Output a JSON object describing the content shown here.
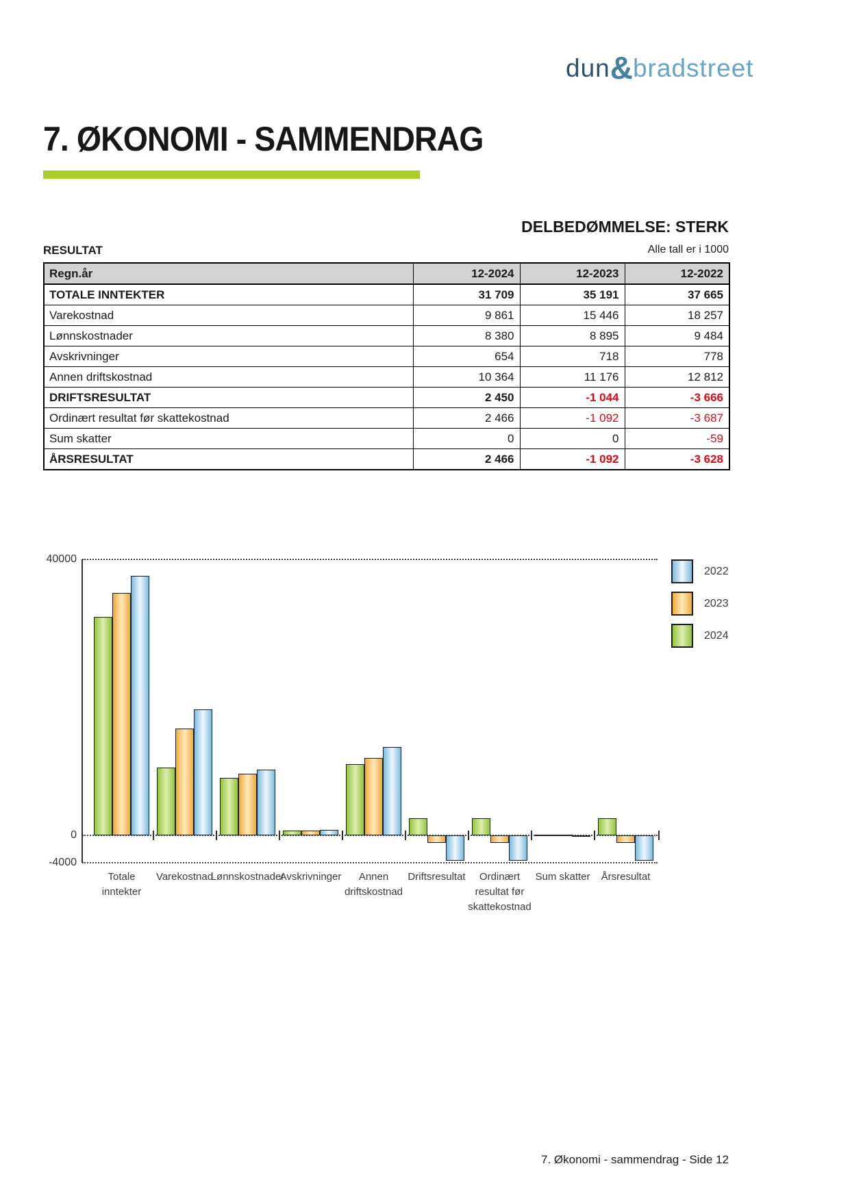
{
  "logo": {
    "word1": "dun",
    "ampersand": "&",
    "word2": "bradstreet"
  },
  "header": {
    "title": "7. ØKONOMI - SAMMENDRAG"
  },
  "summary": {
    "rating": "DELBEDØMMELSE: STERK",
    "section_label": "RESULTAT",
    "units": "Alle tall er i 1000"
  },
  "table": {
    "columns": [
      "Regn.år",
      "12-2024",
      "12-2023",
      "12-2022"
    ],
    "rows": [
      {
        "label": "TOTALE INNTEKTER",
        "values": [
          "31 709",
          "35 191",
          "37 665"
        ]
      },
      {
        "label": "Varekostnad",
        "values": [
          "9 861",
          "15 446",
          "18 257"
        ]
      },
      {
        "label": "Lønnskostnader",
        "values": [
          "8 380",
          "8 895",
          "9 484"
        ]
      },
      {
        "label": "Avskrivninger",
        "values": [
          "654",
          "718",
          "778"
        ]
      },
      {
        "label": "Annen driftskostnad",
        "values": [
          "10 364",
          "11 176",
          "12 812"
        ]
      },
      {
        "label": "DRIFTSRESULTAT",
        "values": [
          "2 450",
          "-1 044",
          "-3 666"
        ]
      },
      {
        "label": "Ordinært resultat før skattekostnad",
        "values": [
          "2 466",
          "-1 092",
          "-3 687"
        ]
      },
      {
        "label": "Sum skatter",
        "values": [
          "0",
          "0",
          "-59"
        ]
      },
      {
        "label": "ÅRSRESULTAT",
        "values": [
          "2 466",
          "-1 092",
          "-3 628"
        ]
      }
    ]
  },
  "chart_data": {
    "type": "bar",
    "categories": [
      "Totale inntekter",
      "Varekostnad",
      "Lønnskostnader",
      "Avskrivninger",
      "Annen driftskostnad",
      "Driftsresultat",
      "Ordinært resultat før skattekostnad",
      "Sum skatter",
      "Årsresultat"
    ],
    "category_label_lines": [
      [
        "Totale",
        "inntekter"
      ],
      [
        "Varekostnad"
      ],
      [
        "Lønnskostnader"
      ],
      [
        "Avskrivninger"
      ],
      [
        "Annen",
        "driftskostnad"
      ],
      [
        "Driftsresultat"
      ],
      [
        "Ordinært",
        "resultat før",
        "skattekostnad"
      ],
      [
        "Sum skatter"
      ],
      [
        "Årsresultat"
      ]
    ],
    "series": [
      {
        "name": "2024",
        "edge_color": "#94c53d",
        "center_color": "#ddeeb0",
        "values": [
          31709,
          9861,
          8380,
          654,
          10364,
          2450,
          2466,
          0,
          2466
        ]
      },
      {
        "name": "2023",
        "edge_color": "#f2a93b",
        "center_color": "#fdebbd",
        "values": [
          35191,
          15446,
          8895,
          718,
          11176,
          -1044,
          -1092,
          0,
          -1092
        ]
      },
      {
        "name": "2022",
        "edge_color": "#7fbce2",
        "center_color": "#eef8fe",
        "values": [
          37665,
          18257,
          9484,
          778,
          12812,
          -3666,
          -3687,
          -59,
          -3628
        ]
      }
    ],
    "legend_order": [
      "2022",
      "2023",
      "2024"
    ],
    "legend_position": "top-right",
    "y_ticks": [
      {
        "value": 40000,
        "label": "40000"
      },
      {
        "value": 0,
        "label": "0"
      },
      {
        "value": -4000,
        "label": "-4000"
      }
    ],
    "ylim": [
      -4000,
      40000
    ],
    "grid": "dotted-horizontal"
  },
  "footer": {
    "text": "7. Økonomi - sammendrag - Side 12"
  }
}
